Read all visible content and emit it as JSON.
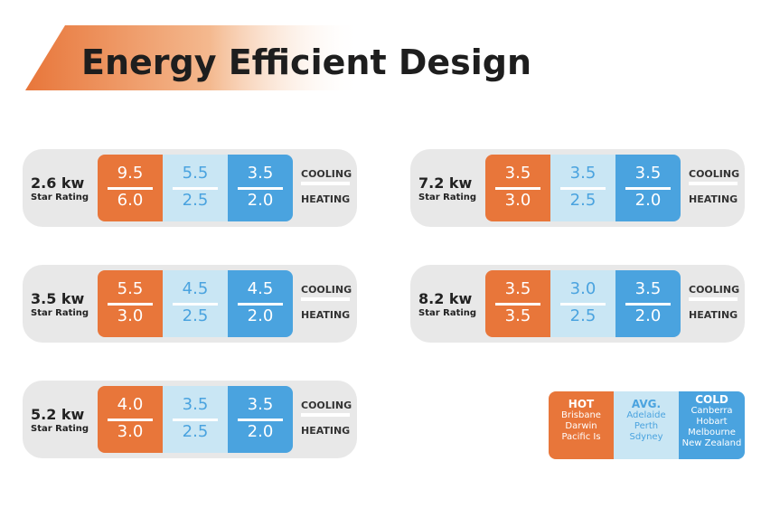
{
  "header": {
    "title": "Energy Efficient Design"
  },
  "cards": [
    {
      "kw": "2.6 kw",
      "rating": "Star Rating",
      "zones": [
        [
          "9.5",
          "6.0"
        ],
        [
          "5.5",
          "2.5"
        ],
        [
          "3.5",
          "2.0"
        ]
      ],
      "cooling": "COOLING",
      "heating": "HEATING"
    },
    {
      "kw": "3.5 kw",
      "rating": "Star Rating",
      "zones": [
        [
          "5.5",
          "3.0"
        ],
        [
          "4.5",
          "2.5"
        ],
        [
          "4.5",
          "2.0"
        ]
      ],
      "cooling": "COOLING",
      "heating": "HEATING"
    },
    {
      "kw": "5.2 kw",
      "rating": "Star Rating",
      "zones": [
        [
          "4.0",
          "3.0"
        ],
        [
          "3.5",
          "2.5"
        ],
        [
          "3.5",
          "2.0"
        ]
      ],
      "cooling": "COOLING",
      "heating": "HEATING"
    },
    {
      "kw": "7.2 kw",
      "rating": "Star Rating",
      "zones": [
        [
          "3.5",
          "3.0"
        ],
        [
          "3.5",
          "2.5"
        ],
        [
          "3.5",
          "2.0"
        ]
      ],
      "cooling": "COOLING",
      "heating": "HEATING"
    },
    {
      "kw": "8.2 kw",
      "rating": "Star Rating",
      "zones": [
        [
          "3.5",
          "3.5"
        ],
        [
          "3.0",
          "2.5"
        ],
        [
          "3.5",
          "2.0"
        ]
      ],
      "cooling": "COOLING",
      "heating": "HEATING"
    }
  ],
  "legend": [
    {
      "title": "HOT",
      "lines": [
        "Brisbane",
        "Darwin",
        "Pacific Is"
      ]
    },
    {
      "title": "AVG.",
      "lines": [
        "Adelaide",
        "Perth",
        "Sdyney"
      ]
    },
    {
      "title": "COLD",
      "lines": [
        "Canberra",
        "Hobart",
        "Melbourne",
        "New Zealand"
      ]
    }
  ]
}
